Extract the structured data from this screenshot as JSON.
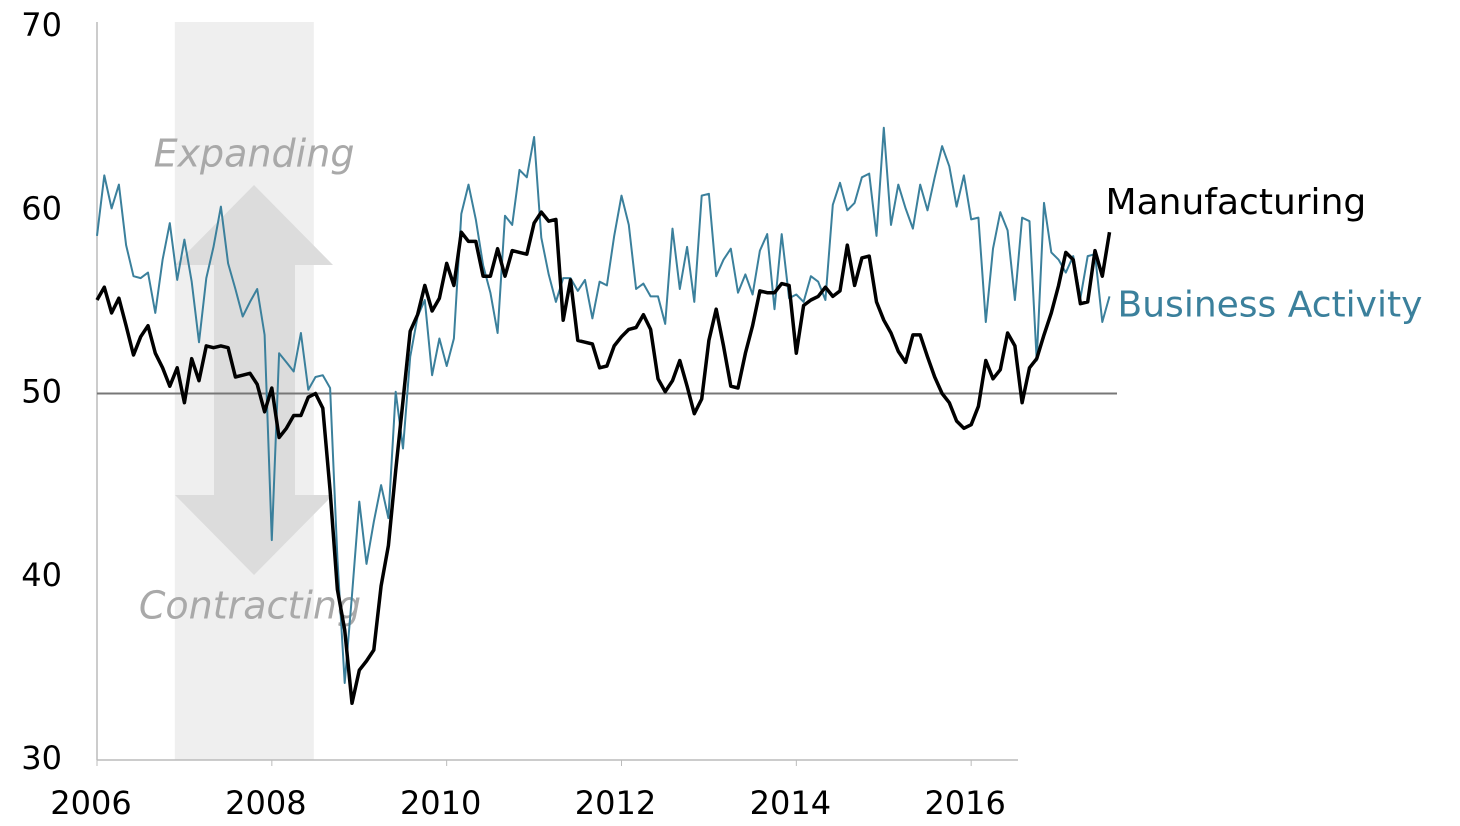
{
  "chart_data": {
    "type": "line",
    "x": [
      2006,
      2006.083,
      2006.167,
      2006.25,
      2006.333,
      2006.417,
      2006.5,
      2006.583,
      2006.667,
      2006.75,
      2006.833,
      2006.917,
      2007,
      2007.083,
      2007.167,
      2007.25,
      2007.333,
      2007.417,
      2007.5,
      2007.583,
      2007.667,
      2007.75,
      2007.833,
      2007.917,
      2008,
      2008.083,
      2008.167,
      2008.25,
      2008.333,
      2008.417,
      2008.5,
      2008.583,
      2008.667,
      2008.75,
      2008.833,
      2008.917,
      2009,
      2009.083,
      2009.167,
      2009.25,
      2009.333,
      2009.417,
      2009.5,
      2009.583,
      2009.667,
      2009.75,
      2009.833,
      2009.917,
      2010,
      2010.083,
      2010.167,
      2010.25,
      2010.333,
      2010.417,
      2010.5,
      2010.583,
      2010.667,
      2010.75,
      2010.833,
      2010.917,
      2011,
      2011.083,
      2011.167,
      2011.25,
      2011.333,
      2011.417,
      2011.5,
      2011.583,
      2011.667,
      2011.75,
      2011.833,
      2011.917,
      2012,
      2012.083,
      2012.167,
      2012.25,
      2012.333,
      2012.417,
      2012.5,
      2012.583,
      2012.667,
      2012.75,
      2012.833,
      2012.917,
      2013,
      2013.083,
      2013.167,
      2013.25,
      2013.333,
      2013.417,
      2013.5,
      2013.583,
      2013.667,
      2013.75,
      2013.833,
      2013.917,
      2014,
      2014.083,
      2014.167,
      2014.25,
      2014.333,
      2014.417,
      2014.5,
      2014.583,
      2014.667,
      2014.75,
      2014.833,
      2014.917,
      2015,
      2015.083,
      2015.167,
      2015.25,
      2015.333,
      2015.417,
      2015.5,
      2015.583,
      2015.667,
      2015.75,
      2015.833,
      2015.917,
      2016,
      2016.083,
      2016.167,
      2016.25,
      2016.333,
      2016.417,
      2016.5,
      2016.583,
      2016.667,
      2016.75,
      2016.833,
      2016.917,
      2017,
      2017.083,
      2017.167,
      2017.25,
      2017.333,
      2017.417,
      2017.5,
      2017.583
    ],
    "series": [
      {
        "name": "Manufacturing",
        "color": "#000000",
        "width": 3.5,
        "values": [
          55.1,
          55.8,
          54.4,
          55.2,
          53.7,
          52.1,
          53.1,
          53.7,
          52.2,
          51.4,
          50.4,
          51.4,
          49.5,
          51.9,
          50.7,
          52.6,
          52.5,
          52.6,
          52.5,
          50.9,
          51.0,
          51.1,
          50.5,
          49.0,
          50.3,
          47.6,
          48.1,
          48.8,
          48.8,
          49.8,
          50.0,
          49.2,
          44.7,
          39.3,
          37.1,
          33.1,
          34.9,
          35.4,
          36.0,
          39.5,
          41.7,
          45.8,
          49.6,
          53.4,
          54.3,
          55.9,
          54.5,
          55.2,
          57.1,
          55.9,
          58.8,
          58.3,
          58.3,
          56.4,
          56.4,
          57.9,
          56.4,
          57.8,
          57.7,
          57.6,
          59.3,
          59.9,
          59.4,
          59.5,
          54.0,
          56.2,
          52.9,
          52.8,
          52.7,
          51.4,
          51.5,
          52.6,
          53.1,
          53.5,
          53.6,
          54.3,
          53.5,
          50.8,
          50.1,
          50.7,
          51.8,
          50.4,
          48.9,
          49.7,
          52.9,
          54.6,
          52.6,
          50.4,
          50.3,
          52.2,
          53.7,
          55.6,
          55.5,
          55.5,
          56.0,
          55.9,
          52.2,
          54.8,
          55.1,
          55.3,
          55.8,
          55.3,
          55.6,
          58.1,
          55.9,
          57.4,
          57.5,
          55.0,
          54.0,
          53.3,
          52.3,
          51.7,
          53.2,
          53.2,
          52.0,
          50.9,
          50.0,
          49.5,
          48.5,
          48.1,
          48.3,
          49.3,
          51.8,
          50.8,
          51.3,
          53.3,
          52.6,
          49.5,
          51.4,
          51.9,
          53.2,
          54.4,
          55.9,
          57.7,
          57.3,
          54.9,
          55.0,
          57.8,
          56.4,
          58.8
        ]
      },
      {
        "name": "Business Activity",
        "color": "#3b809c",
        "width": 2,
        "values": [
          58.6,
          61.9,
          60.1,
          61.4,
          58.1,
          56.4,
          56.3,
          56.6,
          54.4,
          57.3,
          59.3,
          56.2,
          58.4,
          56.1,
          52.8,
          56.3,
          58.0,
          60.2,
          57.1,
          55.7,
          54.2,
          55.0,
          55.7,
          53.2,
          42.0,
          52.2,
          51.7,
          51.2,
          53.3,
          50.2,
          50.9,
          51.0,
          50.3,
          41.0,
          34.2,
          39.0,
          44.1,
          40.7,
          43.0,
          45.0,
          43.2,
          50.1,
          47.0,
          52.0,
          54.2,
          55.1,
          51.0,
          53.0,
          51.5,
          53.0,
          59.8,
          61.4,
          59.5,
          57.0,
          55.5,
          53.3,
          59.7,
          59.2,
          62.2,
          61.8,
          64.0,
          58.5,
          56.5,
          55.0,
          56.3,
          56.3,
          55.6,
          56.2,
          54.1,
          56.1,
          55.9,
          58.6,
          60.8,
          59.2,
          55.7,
          56.0,
          55.3,
          55.3,
          53.8,
          59.0,
          55.7,
          58.0,
          55.0,
          60.8,
          60.9,
          56.4,
          57.3,
          57.9,
          55.5,
          56.5,
          55.4,
          57.8,
          58.7,
          54.6,
          58.7,
          55.2,
          55.4,
          55.0,
          56.4,
          56.1,
          55.1,
          60.3,
          61.5,
          60.0,
          60.4,
          61.8,
          62.0,
          58.6,
          64.5,
          59.2,
          61.4,
          60.1,
          59.0,
          61.4,
          60.0,
          61.8,
          63.5,
          62.4,
          60.2,
          61.9,
          59.5,
          59.6,
          53.9,
          57.9,
          59.9,
          58.9,
          55.1,
          59.6,
          59.4,
          51.8,
          60.4,
          57.7,
          57.3,
          56.6,
          57.5,
          55.2,
          57.5,
          57.6,
          53.9,
          55.3
        ]
      }
    ],
    "xlim": [
      2006,
      2018
    ],
    "xticks": [
      2006,
      2008,
      2010,
      2012,
      2014,
      2016
    ],
    "ylim": [
      30,
      70
    ],
    "yticks": [
      30,
      40,
      50,
      60,
      70
    ],
    "reference_line": 50,
    "shaded_x": [
      2006.89,
      2008.48
    ],
    "annotations": [
      "Expanding",
      "Contracting"
    ]
  }
}
